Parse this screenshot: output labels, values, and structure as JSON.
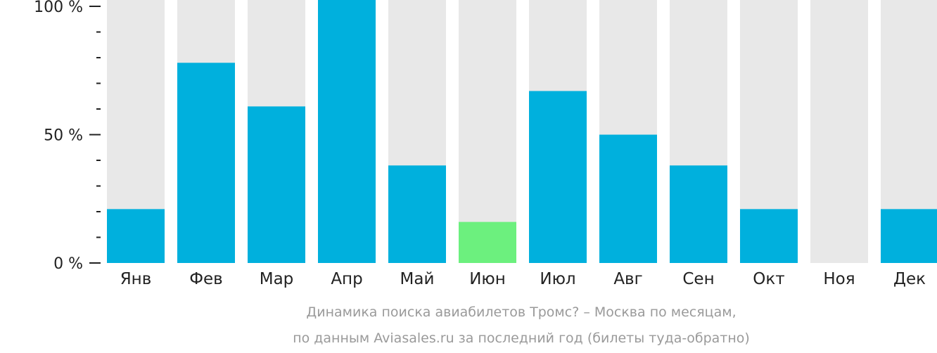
{
  "chart_data": {
    "type": "bar",
    "categories": [
      "Янв",
      "Фев",
      "Мар",
      "Апр",
      "Май",
      "Июн",
      "Июл",
      "Авг",
      "Сен",
      "Окт",
      "Ноя",
      "Дек"
    ],
    "values": [
      21,
      78,
      61,
      105,
      38,
      16,
      67,
      50,
      38,
      21,
      0,
      21
    ],
    "highlight_index": 5,
    "ylim": [
      0,
      100
    ],
    "yticks": [
      {
        "value": 0,
        "label": "0 %"
      },
      {
        "value": 50,
        "label": "50 %"
      },
      {
        "value": 100,
        "label": "100 %"
      }
    ],
    "minor_tick_step": 10,
    "title": "",
    "xlabel": "",
    "ylabel": "",
    "caption_lines": [
      "Динамика поиска авиабилетов Тромс? – Москва по месяцам,",
      "по данным Aviasales.ru за последний год (билеты туда-обратно)"
    ],
    "colors": {
      "bar": "#00b0dd",
      "highlight": "#6cf07e",
      "background_bar": "#e8e8e8",
      "axis": "#222222",
      "caption": "#9a9a9a"
    }
  }
}
